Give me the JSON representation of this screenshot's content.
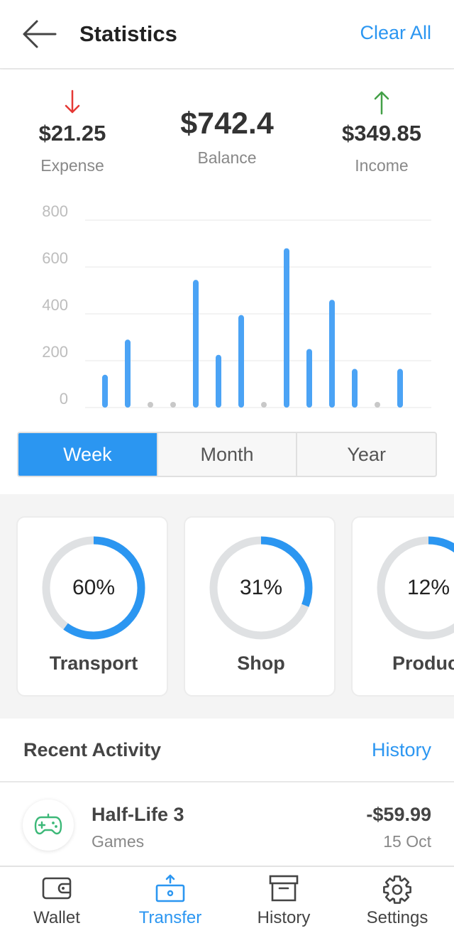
{
  "appbar": {
    "title": "Statistics",
    "clear_label": "Clear All"
  },
  "summary": {
    "expense": {
      "amount": "$21.25",
      "label": "Expense",
      "color": "#e53935"
    },
    "balance": {
      "amount": "$742.4",
      "label": "Balance"
    },
    "income": {
      "amount": "$349.85",
      "label": "Income",
      "color": "#43a047"
    }
  },
  "chart_data": {
    "type": "bar",
    "y_ticks": [
      "800",
      "600",
      "400",
      "200",
      "0"
    ],
    "ylim": [
      0,
      800
    ],
    "values": [
      140,
      290,
      0,
      0,
      545,
      225,
      395,
      0,
      680,
      250,
      460,
      165,
      0,
      165
    ],
    "bar_color": "#4ba3f5",
    "grid": true
  },
  "periods": [
    {
      "label": "Week",
      "active": true
    },
    {
      "label": "Month",
      "active": false
    },
    {
      "label": "Year",
      "active": false
    }
  ],
  "categories": [
    {
      "name": "Transport",
      "percent": 60,
      "percent_label": "60%"
    },
    {
      "name": "Shop",
      "percent": 31,
      "percent_label": "31%"
    },
    {
      "name": "Product",
      "percent": 12,
      "percent_label": "12%"
    }
  ],
  "recent": {
    "title": "Recent Activity",
    "history_label": "History",
    "items": [
      {
        "name": "Half-Life 3",
        "category": "Games",
        "amount": "-$59.99",
        "date": "15 Oct",
        "icon": "gamepad-icon",
        "icon_color": "#3cb878"
      }
    ]
  },
  "nav": [
    {
      "label": "Wallet",
      "icon": "wallet-icon",
      "active": false
    },
    {
      "label": "Transfer",
      "icon": "transfer-icon",
      "active": true
    },
    {
      "label": "History",
      "icon": "archive-icon",
      "active": false
    },
    {
      "label": "Settings",
      "icon": "gear-icon",
      "active": false
    }
  ],
  "accent": "#2b96f1"
}
